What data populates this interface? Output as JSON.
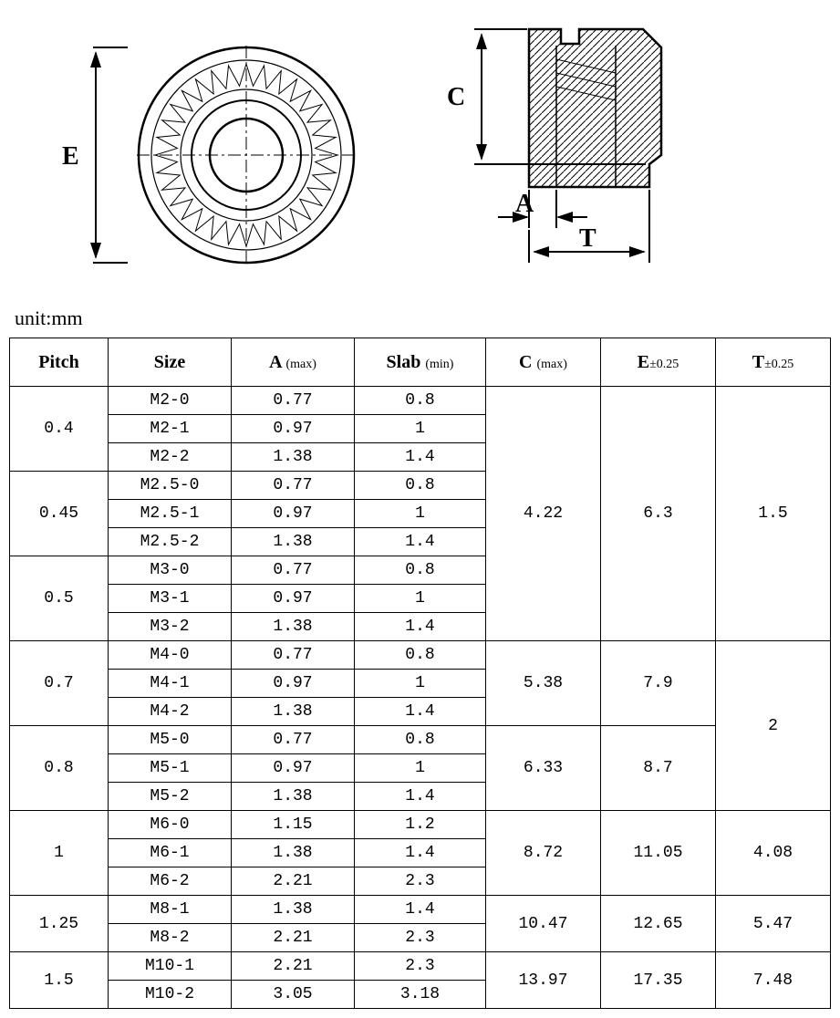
{
  "unit_label": "unit:mm",
  "dimensions": {
    "E": "E",
    "C": "C",
    "A": "A",
    "T": "T"
  },
  "headers": {
    "pitch": "Pitch",
    "size": "Size",
    "a": "A",
    "a_sub": "(max)",
    "slab": "Slab",
    "slab_sub": "(min)",
    "c": "C",
    "c_sub": "(max)",
    "e": "E",
    "e_sub": "±0.25",
    "t": "T",
    "t_sub": "±0.25"
  },
  "groups": [
    {
      "pitch": "0.4",
      "rows": [
        {
          "size": "M2-0",
          "a": "0.77",
          "slab": "0.8"
        },
        {
          "size": "M2-1",
          "a": "0.97",
          "slab": "1"
        },
        {
          "size": "M2-2",
          "a": "1.38",
          "slab": "1.4"
        }
      ]
    },
    {
      "pitch": "0.45",
      "rows": [
        {
          "size": "M2.5-0",
          "a": "0.77",
          "slab": "0.8"
        },
        {
          "size": "M2.5-1",
          "a": "0.97",
          "slab": "1"
        },
        {
          "size": "M2.5-2",
          "a": "1.38",
          "slab": "1.4"
        }
      ]
    },
    {
      "pitch": "0.5",
      "rows": [
        {
          "size": "M3-0",
          "a": "0.77",
          "slab": "0.8"
        },
        {
          "size": "M3-1",
          "a": "0.97",
          "slab": "1"
        },
        {
          "size": "M3-2",
          "a": "1.38",
          "slab": "1.4"
        }
      ]
    },
    {
      "pitch": "0.7",
      "rows": [
        {
          "size": "M4-0",
          "a": "0.77",
          "slab": "0.8"
        },
        {
          "size": "M4-1",
          "a": "0.97",
          "slab": "1"
        },
        {
          "size": "M4-2",
          "a": "1.38",
          "slab": "1.4"
        }
      ]
    },
    {
      "pitch": "0.8",
      "rows": [
        {
          "size": "M5-0",
          "a": "0.77",
          "slab": "0.8"
        },
        {
          "size": "M5-1",
          "a": "0.97",
          "slab": "1"
        },
        {
          "size": "M5-2",
          "a": "1.38",
          "slab": "1.4"
        }
      ]
    },
    {
      "pitch": "1",
      "rows": [
        {
          "size": "M6-0",
          "a": "1.15",
          "slab": "1.2"
        },
        {
          "size": "M6-1",
          "a": "1.38",
          "slab": "1.4"
        },
        {
          "size": "M6-2",
          "a": "2.21",
          "slab": "2.3"
        }
      ]
    },
    {
      "pitch": "1.25",
      "rows": [
        {
          "size": "M8-1",
          "a": "1.38",
          "slab": "1.4"
        },
        {
          "size": "M8-2",
          "a": "2.21",
          "slab": "2.3"
        }
      ]
    },
    {
      "pitch": "1.5",
      "rows": [
        {
          "size": "M10-1",
          "a": "2.21",
          "slab": "2.3"
        },
        {
          "size": "M10-2",
          "a": "3.05",
          "slab": "3.18"
        }
      ]
    }
  ],
  "cet_merges": [
    {
      "span": 9,
      "c": "4.22",
      "e": "6.3",
      "t": "1.5"
    },
    {
      "span": 3,
      "c": "5.38",
      "e": "7.9"
    },
    {
      "span": 3,
      "c": "6.33",
      "e": "8.7"
    },
    {
      "span": 3,
      "c": "8.72",
      "e": "11.05",
      "t": "4.08"
    },
    {
      "span": 2,
      "c": "10.47",
      "e": "12.65",
      "t": "5.47"
    },
    {
      "span": 2,
      "c": "13.97",
      "e": "17.35",
      "t": "7.48"
    }
  ],
  "t_big_span": {
    "span": 6,
    "t": "2"
  },
  "diagram_style": {
    "stroke": "#000000",
    "stroke_width": 2,
    "thin_width": 1,
    "hatch_spacing": 6
  }
}
